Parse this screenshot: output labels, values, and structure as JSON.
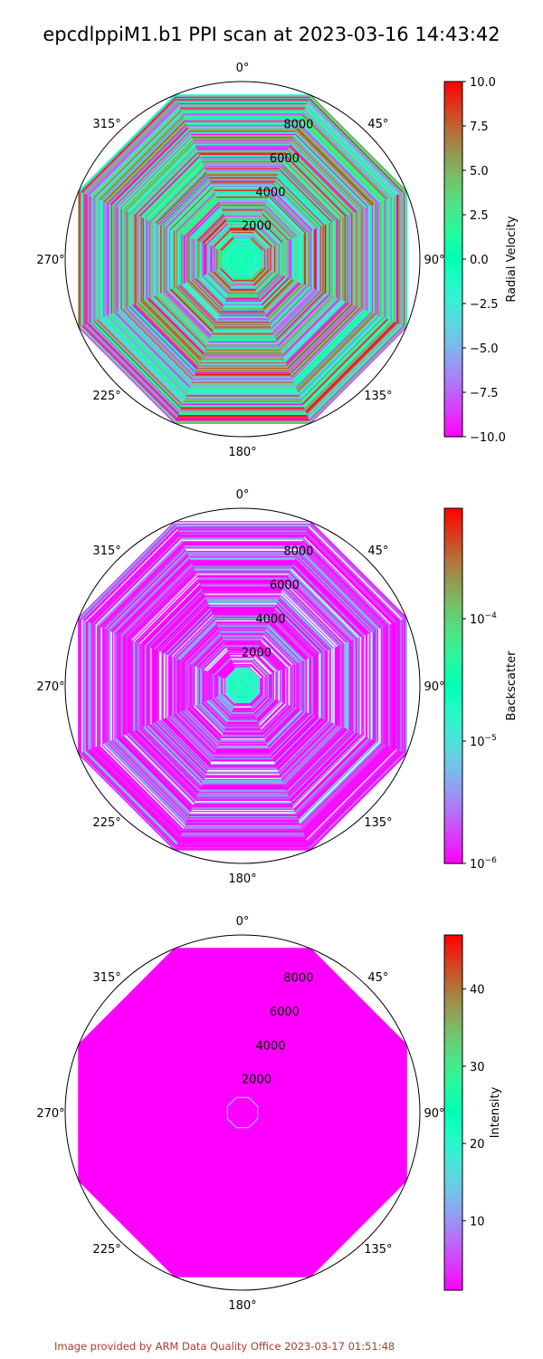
{
  "page": {
    "title": "epcdlppiM1.b1 PPI scan at 2023-03-16 14:43:42",
    "footer": "Image provided by ARM Data Quality Office 2023-03-17 01:51:48"
  },
  "chart_data": [
    {
      "type": "heatmap",
      "projection": "polar",
      "theta_zero": "N",
      "theta_direction": "clockwise",
      "theta_ticks": [
        "0°",
        "45°",
        "90°",
        "135°",
        "180°",
        "225°",
        "270°",
        "315°"
      ],
      "r_ticks": [
        2000,
        4000,
        6000,
        8000
      ],
      "r_max": 9700,
      "data_r_max": 9000,
      "colorbar": {
        "label": "Radial Velocity",
        "scale": "linear",
        "min": -10.0,
        "max": 10.0,
        "ticks": [
          "10.0",
          "7.5",
          "5.0",
          "2.5",
          "0.0",
          "−2.5",
          "−5.0",
          "−7.5",
          "−10.0"
        ],
        "colormap": "rainbow"
      },
      "description_of_field": "noisy multicolored radial stripes across all ranges, near zero at center"
    },
    {
      "type": "heatmap",
      "projection": "polar",
      "theta_zero": "N",
      "theta_direction": "clockwise",
      "theta_ticks": [
        "0°",
        "45°",
        "90°",
        "135°",
        "180°",
        "225°",
        "270°",
        "315°"
      ],
      "r_ticks": [
        2000,
        4000,
        6000,
        8000
      ],
      "r_max": 9700,
      "data_r_max": 9000,
      "colorbar": {
        "label": "Backscatter",
        "scale": "log",
        "min": 1e-06,
        "max": 0.0008,
        "ticks": [
          "10^−4",
          "10^−5",
          "10^−6"
        ],
        "colormap": "rainbow"
      },
      "description_of_field": "mostly low values (purple/blue) with a bright ring near the center"
    },
    {
      "type": "heatmap",
      "projection": "polar",
      "theta_zero": "N",
      "theta_direction": "clockwise",
      "theta_ticks": [
        "0°",
        "45°",
        "90°",
        "135°",
        "180°",
        "225°",
        "270°",
        "315°"
      ],
      "r_ticks": [
        2000,
        4000,
        6000,
        8000
      ],
      "r_max": 9700,
      "data_r_max": 9000,
      "colorbar": {
        "label": "Intensity",
        "scale": "linear",
        "min": 1,
        "max": 47,
        "ticks": [
          "40",
          "30",
          "20",
          "10"
        ],
        "colormap": "rainbow"
      },
      "description_of_field": "uniform minimum intensity with a small ring near center"
    }
  ]
}
